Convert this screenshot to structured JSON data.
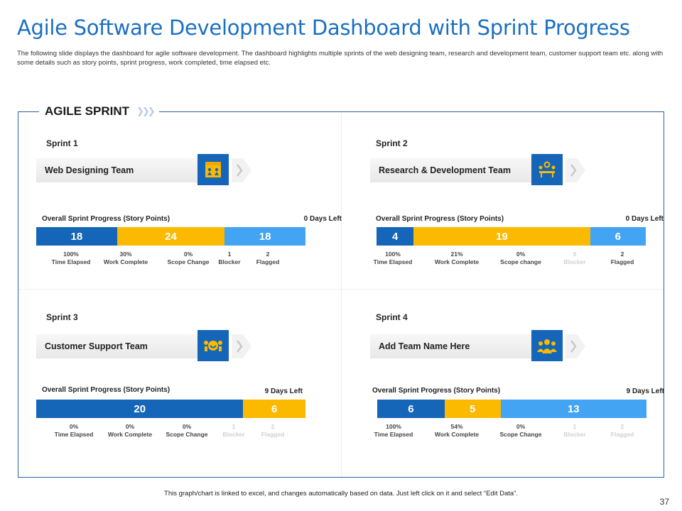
{
  "title": "Agile Software Development Dashboard with Sprint Progress",
  "subtitle": "The following slide displays the dashboard for agile software development. The dashboard highlights multiple sprints of the web designing team, research and development team, customer support team etc. along with some details such as story points, sprint progress, work completed, time elapsed etc.",
  "panel_title": "AGILE SPRINT",
  "colors": {
    "dark_blue": "#1566b8",
    "yellow": "#fbb900",
    "light_blue": "#42a4f2",
    "title_blue": "#1b6fc2"
  },
  "sprints": [
    {
      "label": "Sprint 1",
      "team": "Web Designing Team",
      "icon": "web-design-icon",
      "progress_label": "Overall Sprint Progress (Story Points)",
      "days_left": "0 Days Left",
      "segments": [
        {
          "value": "18",
          "color": "#1566b8",
          "share": 30
        },
        {
          "value": "24",
          "color": "#fbb900",
          "share": 40
        },
        {
          "value": "18",
          "color": "#42a4f2",
          "share": 30
        }
      ],
      "metrics": [
        {
          "value": "100%",
          "label": "Time Elapsed",
          "muted": false
        },
        {
          "value": "30%",
          "label": "Work Complete",
          "muted": false
        },
        {
          "value": "0%",
          "label": "Scope Change",
          "muted": false
        },
        {
          "value": "1",
          "label": "Blocker",
          "muted": false
        },
        {
          "value": "2",
          "label": "Flagged",
          "muted": false
        }
      ]
    },
    {
      "label": "Sprint 2",
      "team": "Research & Development  Team",
      "icon": "research-team-icon",
      "progress_label": "Overall Sprint Progress (Story Points)",
      "days_left": "0 Days Left",
      "segments": [
        {
          "value": "4",
          "color": "#1566b8",
          "share": 13.8
        },
        {
          "value": "19",
          "color": "#fbb900",
          "share": 65.5
        },
        {
          "value": "6",
          "color": "#42a4f2",
          "share": 20.7
        }
      ],
      "metrics": [
        {
          "value": "100%",
          "label": "Time Elapsed",
          "muted": false
        },
        {
          "value": "21%",
          "label": "Work Complete",
          "muted": false
        },
        {
          "value": "0%",
          "label": "Scope change",
          "muted": false
        },
        {
          "value": "0",
          "label": "Blocker",
          "muted": true
        },
        {
          "value": "2",
          "label": "Flagged",
          "muted": false
        }
      ]
    },
    {
      "label": "Sprint 3",
      "team": "Customer Support Team",
      "icon": "customer-support-icon",
      "progress_label": "Overall Sprint Progress (Story Points)",
      "days_left": "9 Days Left",
      "segments": [
        {
          "value": "20",
          "color": "#1566b8",
          "share": 76.9
        },
        {
          "value": "6",
          "color": "#fbb900",
          "share": 23.1
        }
      ],
      "metrics": [
        {
          "value": "0%",
          "label": "Time Elapsed",
          "muted": false
        },
        {
          "value": "0%",
          "label": "Work Complete",
          "muted": false
        },
        {
          "value": "0%",
          "label": "Scope Change",
          "muted": false
        },
        {
          "value": "1",
          "label": "Blocker",
          "muted": true
        },
        {
          "value": "2",
          "label": "Flagged",
          "muted": true
        }
      ]
    },
    {
      "label": "Sprint 4",
      "team": "Add Team Name Here",
      "icon": "team-group-icon",
      "progress_label": "Overall Sprint Progress (Story Points)",
      "days_left": "9 Days Left",
      "segments": [
        {
          "value": "6",
          "color": "#1566b8",
          "share": 25
        },
        {
          "value": "5",
          "color": "#fbb900",
          "share": 20.8
        },
        {
          "value": "13",
          "color": "#42a4f2",
          "share": 54.2
        }
      ],
      "metrics": [
        {
          "value": "100%",
          "label": "Time Elapsed",
          "muted": false
        },
        {
          "value": "54%",
          "label": "Work Complete",
          "muted": false
        },
        {
          "value": "0%",
          "label": "Scope Change",
          "muted": false
        },
        {
          "value": "1",
          "label": "Blocker",
          "muted": true
        },
        {
          "value": "2",
          "label": "Flagged",
          "muted": true
        }
      ]
    }
  ],
  "footer": "This graph/chart is linked to excel, and changes automatically based on data. Just left click on it and select “Edit Data”.",
  "page_number": "37"
}
